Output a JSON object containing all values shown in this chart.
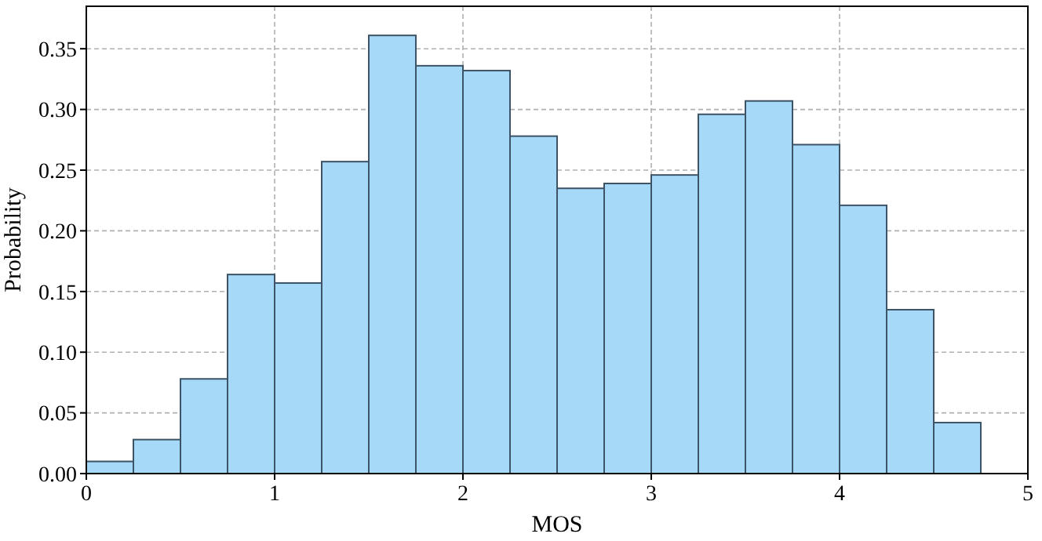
{
  "chart_data": {
    "type": "histogram",
    "xlabel": "MOS",
    "ylabel": "Probability",
    "bins": [
      0,
      0.25,
      0.5,
      0.75,
      1,
      1.25,
      1.5,
      1.75,
      2,
      2.25,
      2.5,
      2.75,
      3,
      3.25,
      3.5,
      3.75,
      4,
      4.25,
      4.5,
      4.75
    ],
    "values": [
      0.01,
      0.028,
      0.078,
      0.164,
      0.157,
      0.257,
      0.361,
      0.336,
      0.332,
      0.278,
      0.235,
      0.239,
      0.246,
      0.296,
      0.307,
      0.271,
      0.221,
      0.135,
      0.042
    ],
    "color": "#a6d8f8",
    "xlim": [
      0,
      5
    ],
    "xticks": [
      0,
      1,
      2,
      3,
      4,
      5
    ],
    "ylim": [
      0,
      0.385
    ],
    "yticks": [
      {
        "value": 0,
        "label": "0.00"
      },
      {
        "value": 0.05,
        "label": "0.05"
      },
      {
        "value": 0.1,
        "label": "0.10"
      },
      {
        "value": 0.15,
        "label": "0.15"
      },
      {
        "value": 0.2,
        "label": "0.20"
      },
      {
        "value": 0.25,
        "label": "0.25"
      },
      {
        "value": 0.3,
        "label": "0.30"
      },
      {
        "value": 0.35,
        "label": "0.35"
      }
    ],
    "grid": true
  }
}
